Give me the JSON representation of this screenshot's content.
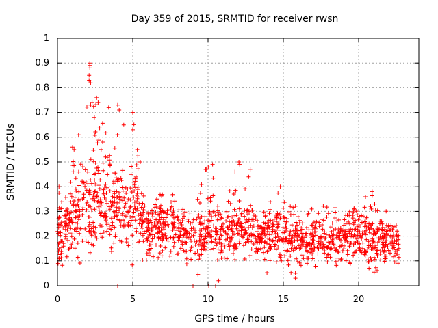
{
  "chart_data": {
    "type": "scatter",
    "title": "Day 359 of 2015, SRMTID for receiver rwsn",
    "xlabel": "GPS time / hours",
    "ylabel": "SRMTID / TECUs",
    "xlim": [
      0,
      24
    ],
    "ylim": [
      0,
      1
    ],
    "grid": true,
    "marker": "plus",
    "color": "#ff0000",
    "xticks": [
      0,
      5,
      10,
      15,
      20
    ],
    "xtick_labels": [
      "0",
      "5",
      "10",
      "15",
      "20"
    ],
    "yticks": [
      0,
      0.1,
      0.2,
      0.3,
      0.4,
      0.5,
      0.6,
      0.7,
      0.8,
      0.9,
      1
    ],
    "ytick_labels": [
      "0",
      "0.1",
      "0.2",
      "0.3",
      "0.4",
      "0.5",
      "0.6",
      "0.7",
      "0.8",
      "0.9",
      "1"
    ],
    "x_range_of_data": [
      0,
      22.7
    ],
    "envelope": [
      {
        "hour": 0.0,
        "mean": 0.2,
        "spread": 0.08,
        "max": 0.4
      },
      {
        "hour": 0.5,
        "mean": 0.2,
        "spread": 0.08,
        "max": 0.34
      },
      {
        "hour": 1.0,
        "mean": 0.26,
        "spread": 0.1,
        "max": 0.56
      },
      {
        "hour": 1.5,
        "mean": 0.28,
        "spread": 0.11,
        "max": 0.5
      },
      {
        "hour": 2.0,
        "mean": 0.3,
        "spread": 0.13,
        "max": 0.9
      },
      {
        "hour": 2.5,
        "mean": 0.36,
        "spread": 0.14,
        "max": 0.76
      },
      {
        "hour": 3.0,
        "mean": 0.33,
        "spread": 0.12,
        "max": 0.74
      },
      {
        "hour": 3.5,
        "mean": 0.3,
        "spread": 0.11,
        "max": 0.62
      },
      {
        "hour": 4.0,
        "mean": 0.33,
        "spread": 0.13,
        "max": 0.73
      },
      {
        "hour": 4.5,
        "mean": 0.27,
        "spread": 0.11,
        "max": 0.5
      },
      {
        "hour": 5.0,
        "mean": 0.33,
        "spread": 0.12,
        "max": 0.7
      },
      {
        "hour": 5.5,
        "mean": 0.28,
        "spread": 0.1,
        "max": 0.48
      },
      {
        "hour": 6.0,
        "mean": 0.22,
        "spread": 0.07,
        "max": 0.36
      },
      {
        "hour": 7.0,
        "mean": 0.22,
        "spread": 0.07,
        "max": 0.38
      },
      {
        "hour": 8.0,
        "mean": 0.22,
        "spread": 0.07,
        "max": 0.38
      },
      {
        "hour": 9.0,
        "mean": 0.2,
        "spread": 0.07,
        "max": 0.35
      },
      {
        "hour": 10.0,
        "mean": 0.22,
        "spread": 0.08,
        "max": 0.5
      },
      {
        "hour": 11.0,
        "mean": 0.2,
        "spread": 0.07,
        "max": 0.36
      },
      {
        "hour": 12.0,
        "mean": 0.24,
        "spread": 0.09,
        "max": 0.5
      },
      {
        "hour": 13.0,
        "mean": 0.2,
        "spread": 0.07,
        "max": 0.32
      },
      {
        "hour": 14.0,
        "mean": 0.2,
        "spread": 0.07,
        "max": 0.34
      },
      {
        "hour": 15.0,
        "mean": 0.22,
        "spread": 0.08,
        "max": 0.4
      },
      {
        "hour": 16.0,
        "mean": 0.18,
        "spread": 0.07,
        "max": 0.34
      },
      {
        "hour": 17.0,
        "mean": 0.18,
        "spread": 0.07,
        "max": 0.32
      },
      {
        "hour": 18.0,
        "mean": 0.18,
        "spread": 0.07,
        "max": 0.34
      },
      {
        "hour": 19.0,
        "mean": 0.18,
        "spread": 0.07,
        "max": 0.32
      },
      {
        "hour": 20.0,
        "mean": 0.2,
        "spread": 0.07,
        "max": 0.36
      },
      {
        "hour": 21.0,
        "mean": 0.17,
        "spread": 0.07,
        "max": 0.38
      },
      {
        "hour": 22.0,
        "mean": 0.19,
        "spread": 0.07,
        "max": 0.3
      },
      {
        "hour": 22.7,
        "mean": 0.15,
        "spread": 0.05,
        "max": 0.22
      }
    ],
    "notable_points": [
      {
        "x": 2.15,
        "y": 0.9
      },
      {
        "x": 2.15,
        "y": 0.89
      },
      {
        "x": 2.15,
        "y": 0.88
      },
      {
        "x": 2.1,
        "y": 0.85
      },
      {
        "x": 2.1,
        "y": 0.83
      },
      {
        "x": 2.2,
        "y": 0.82
      },
      {
        "x": 2.3,
        "y": 0.74
      },
      {
        "x": 2.2,
        "y": 0.73
      },
      {
        "x": 2.6,
        "y": 0.76
      },
      {
        "x": 2.7,
        "y": 0.74
      },
      {
        "x": 3.4,
        "y": 0.72
      },
      {
        "x": 4.0,
        "y": 0.73
      },
      {
        "x": 4.1,
        "y": 0.71
      },
      {
        "x": 5.0,
        "y": 0.7
      },
      {
        "x": 2.45,
        "y": 0.68
      },
      {
        "x": 4.4,
        "y": 0.65
      },
      {
        "x": 5.0,
        "y": 0.63
      },
      {
        "x": 1.4,
        "y": 0.61
      },
      {
        "x": 1.0,
        "y": 0.56
      },
      {
        "x": 1.1,
        "y": 0.55
      },
      {
        "x": 3.0,
        "y": 0.58
      },
      {
        "x": 2.9,
        "y": 0.55
      },
      {
        "x": 3.2,
        "y": 0.52
      },
      {
        "x": 5.3,
        "y": 0.55
      },
      {
        "x": 5.5,
        "y": 0.5
      },
      {
        "x": 10.3,
        "y": 0.49
      },
      {
        "x": 12.05,
        "y": 0.5
      },
      {
        "x": 12.1,
        "y": 0.49
      },
      {
        "x": 9.9,
        "y": 0.47
      },
      {
        "x": 12.8,
        "y": 0.47
      },
      {
        "x": 12.7,
        "y": 0.44
      },
      {
        "x": 0.1,
        "y": 0.4
      },
      {
        "x": 14.8,
        "y": 0.4
      },
      {
        "x": 20.9,
        "y": 0.38
      },
      {
        "x": 4.0,
        "y": 0.0
      },
      {
        "x": 9.0,
        "y": 0.0
      },
      {
        "x": 10.05,
        "y": 0.0
      },
      {
        "x": 10.5,
        "y": 0.0
      },
      {
        "x": 10.7,
        "y": 0.02
      },
      {
        "x": 15.8,
        "y": 0.03
      },
      {
        "x": 15.8,
        "y": 0.05
      }
    ]
  }
}
